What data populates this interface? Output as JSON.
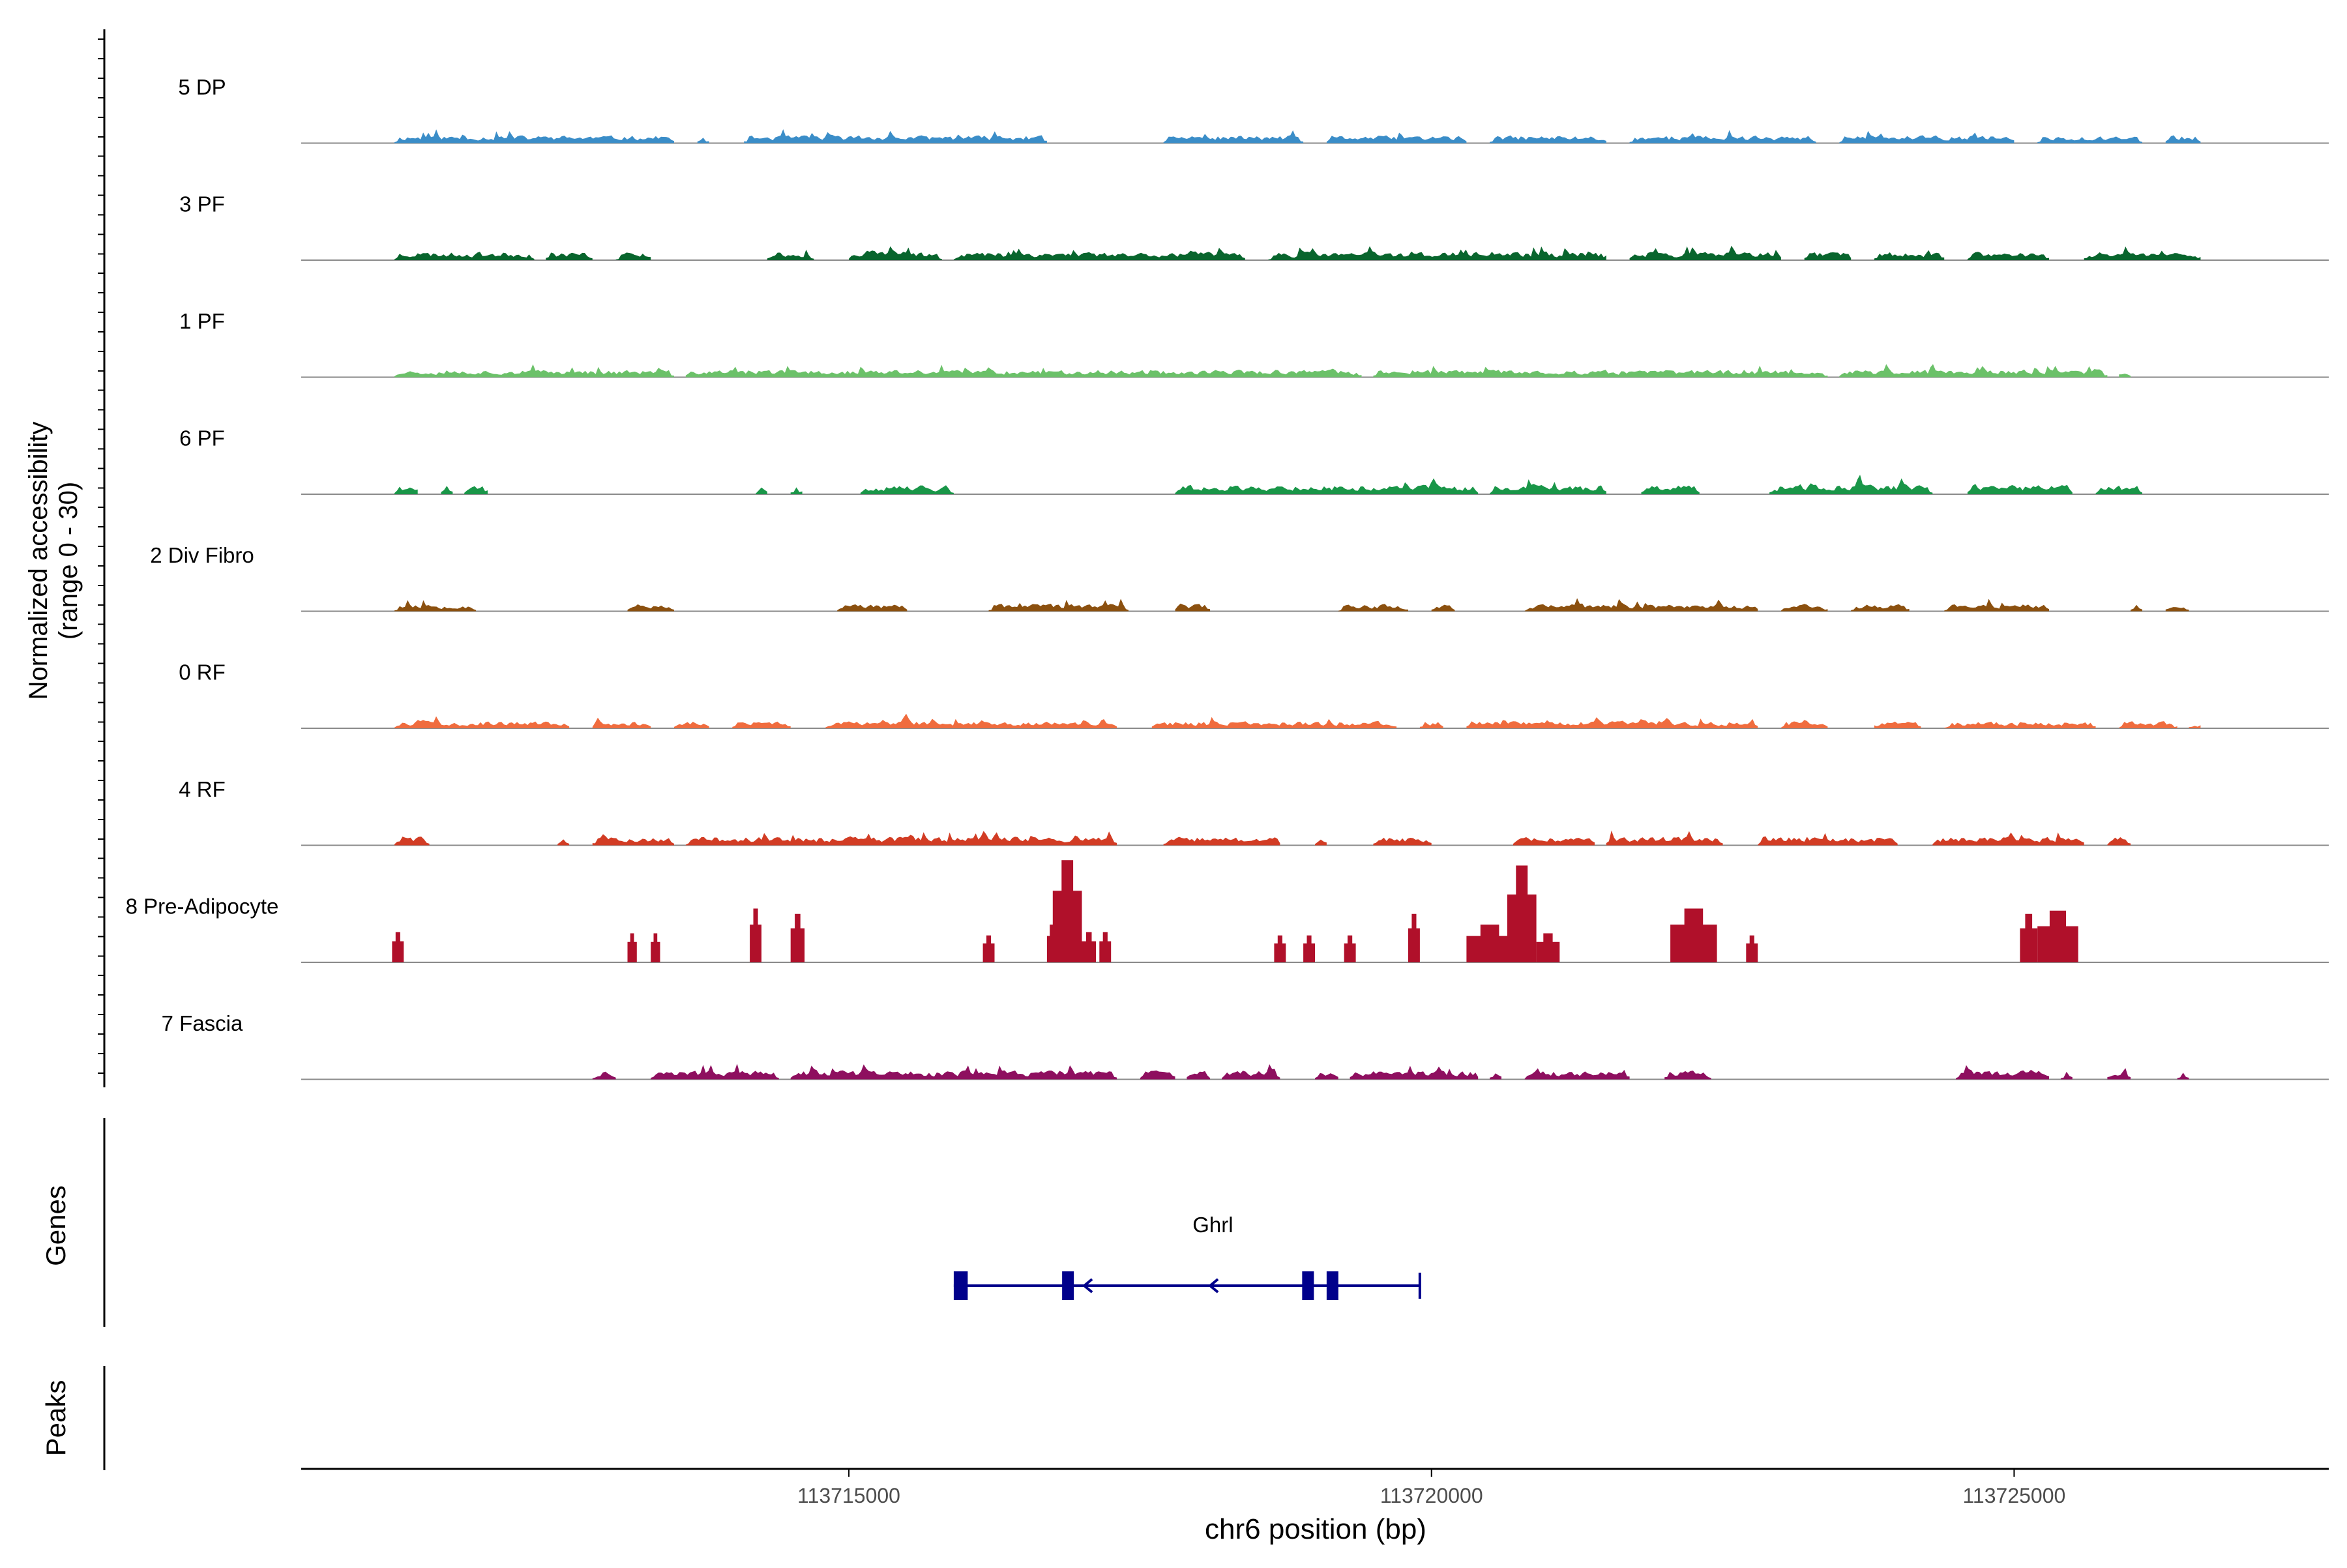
{
  "chart_data": {
    "type": "area",
    "title": "",
    "ylabel_line1": "Normalized accessibility",
    "ylabel_line2": "(range 0 - 30)",
    "xlabel": "chr6 position (bp)",
    "xlim": [
      113710300,
      113727700
    ],
    "ylim": [
      0,
      30
    ],
    "xticks": [
      113715000,
      113720000,
      113725000
    ],
    "xtick_labels": [
      "113715000",
      "113720000",
      "113725000"
    ],
    "series": [
      {
        "name": "5 DP",
        "color": "#3A8DC8",
        "seed": 11,
        "scale": 0.42,
        "segments": [
          [
            113711100,
            113713500
          ],
          [
            113713700,
            113713800
          ],
          [
            113714100,
            113716700
          ],
          [
            113717700,
            113718900
          ],
          [
            113719100,
            113720300
          ],
          [
            113720500,
            113721500
          ],
          [
            113721700,
            113723300
          ],
          [
            113723500,
            113725000
          ],
          [
            113725200,
            113726100
          ],
          [
            113726300,
            113726600
          ]
        ]
      },
      {
        "name": "3 PF",
        "color": "#08652D",
        "seed": 23,
        "scale": 0.45,
        "segments": [
          [
            113711100,
            113712300
          ],
          [
            113712400,
            113712800
          ],
          [
            113713000,
            113713300
          ],
          [
            113714300,
            113714700
          ],
          [
            113715000,
            113715800
          ],
          [
            113715900,
            113718400
          ],
          [
            113718600,
            113721500
          ],
          [
            113721700,
            113723000
          ],
          [
            113723200,
            113723600
          ],
          [
            113723800,
            113724400
          ],
          [
            113724600,
            113725300
          ],
          [
            113725600,
            113726600
          ]
        ]
      },
      {
        "name": "1 PF",
        "color": "#6BC169",
        "seed": 37,
        "scale": 0.4,
        "segments": [
          [
            113711100,
            113713500
          ],
          [
            113713600,
            113719400
          ],
          [
            113719500,
            113723400
          ],
          [
            113723500,
            113725800
          ],
          [
            113725900,
            113726000
          ]
        ]
      },
      {
        "name": "6 PF",
        "color": "#199648",
        "seed": 41,
        "scale": 0.5,
        "segments": [
          [
            113711100,
            113711300
          ],
          [
            113711500,
            113711600
          ],
          [
            113711700,
            113711900
          ],
          [
            113714200,
            113714300
          ],
          [
            113714500,
            113714600
          ],
          [
            113715100,
            113715900
          ],
          [
            113717800,
            113720400
          ],
          [
            113720500,
            113721500
          ],
          [
            113721800,
            113722300
          ],
          [
            113722900,
            113724300
          ],
          [
            113724600,
            113725500
          ],
          [
            113725700,
            113726100
          ]
        ]
      },
      {
        "name": "2 Div Fibro",
        "color": "#8B500F",
        "seed": 53,
        "scale": 0.4,
        "segments": [
          [
            113711100,
            113711800
          ],
          [
            113713100,
            113713500
          ],
          [
            113714900,
            113715500
          ],
          [
            113716200,
            113717400
          ],
          [
            113717800,
            113718100
          ],
          [
            113719200,
            113719800
          ],
          [
            113720000,
            113720200
          ],
          [
            113720800,
            113722800
          ],
          [
            113723000,
            113723400
          ],
          [
            113723600,
            113724100
          ],
          [
            113724400,
            113725300
          ],
          [
            113726000,
            113726100
          ],
          [
            113726300,
            113726500
          ]
        ]
      },
      {
        "name": "0 RF",
        "color": "#F06C3E",
        "seed": 67,
        "scale": 0.38,
        "segments": [
          [
            113711100,
            113712600
          ],
          [
            113712800,
            113713300
          ],
          [
            113713500,
            113713800
          ],
          [
            113714000,
            113714500
          ],
          [
            113714800,
            113717300
          ],
          [
            113717600,
            113719700
          ],
          [
            113719900,
            113720100
          ],
          [
            113720300,
            113722800
          ],
          [
            113723000,
            113723400
          ],
          [
            113723800,
            113724200
          ],
          [
            113724400,
            113725700
          ],
          [
            113725900,
            113726400
          ],
          [
            113726500,
            113726600
          ]
        ]
      },
      {
        "name": "4 RF",
        "color": "#D23C24",
        "seed": 79,
        "scale": 0.48,
        "segments": [
          [
            113711100,
            113711400
          ],
          [
            113712500,
            113712600
          ],
          [
            113712800,
            113713500
          ],
          [
            113713600,
            113717300
          ],
          [
            113717700,
            113718700
          ],
          [
            113719000,
            113719100
          ],
          [
            113719500,
            113720000
          ],
          [
            113720700,
            113721400
          ],
          [
            113721500,
            113722500
          ],
          [
            113722800,
            113724000
          ],
          [
            113724300,
            113725600
          ],
          [
            113725800,
            113726000
          ]
        ]
      },
      {
        "name": "8 Pre-Adipocyte",
        "color": "#B0102A",
        "seed": 83,
        "scale": 1.0,
        "segments": []
      },
      {
        "name": "7 Fascia",
        "color": "#8E0F5F",
        "seed": 97,
        "scale": 0.48,
        "segments": [
          [
            113712800,
            113713000
          ],
          [
            113713300,
            113714400
          ],
          [
            113714500,
            113717300
          ],
          [
            113717500,
            113717800
          ],
          [
            113717900,
            113718100
          ],
          [
            113718200,
            113718700
          ],
          [
            113719000,
            113719200
          ],
          [
            113719300,
            113720400
          ],
          [
            113720500,
            113720600
          ],
          [
            113720800,
            113721700
          ],
          [
            113722000,
            113722400
          ],
          [
            113724500,
            113725300
          ],
          [
            113725400,
            113725500
          ],
          [
            113725800,
            113726000
          ],
          [
            113726400,
            113726500
          ]
        ]
      }
    ],
    "preadipocyte_peaks": [
      [
        113711080,
        113711180,
        0.28
      ],
      [
        113713100,
        113713180,
        0.27
      ],
      [
        113713300,
        113713380,
        0.27
      ],
      [
        113714150,
        113714250,
        0.5
      ],
      [
        113714500,
        113714620,
        0.45
      ],
      [
        113716150,
        113716250,
        0.25
      ],
      [
        113716700,
        113716780,
        0.35
      ],
      [
        113716750,
        113717000,
        0.95
      ],
      [
        113717000,
        113717120,
        0.28
      ],
      [
        113717150,
        113717250,
        0.28
      ],
      [
        113718650,
        113718750,
        0.25
      ],
      [
        113718900,
        113719000,
        0.25
      ],
      [
        113719250,
        113719350,
        0.25
      ],
      [
        113719800,
        113719900,
        0.45
      ],
      [
        113720300,
        113720700,
        0.35
      ],
      [
        113720650,
        113720900,
        0.9
      ],
      [
        113720900,
        113721100,
        0.27
      ],
      [
        113722050,
        113722450,
        0.5
      ],
      [
        113722700,
        113722800,
        0.25
      ],
      [
        113725050,
        113725200,
        0.45
      ],
      [
        113725200,
        113725550,
        0.48
      ]
    ],
    "genes": [
      {
        "name": "Ghrl",
        "start": 113715900,
        "end": 113719900,
        "strand": "-",
        "exons": [
          [
            113715900,
            113716020
          ],
          [
            113716830,
            113716920
          ],
          [
            113718890,
            113718980
          ],
          [
            113719100,
            113719200
          ]
        ]
      }
    ],
    "track_labels": {
      "genes": "Genes",
      "peaks": "Peaks"
    }
  }
}
